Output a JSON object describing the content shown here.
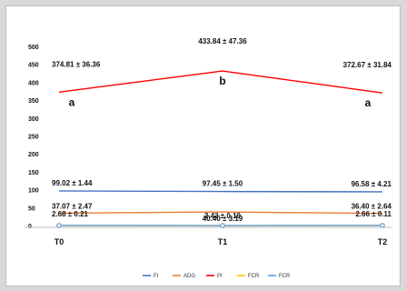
{
  "chart_data": {
    "type": "line",
    "categories": [
      "T0",
      "T1",
      "T2"
    ],
    "y_ticks": [
      0,
      50,
      100,
      150,
      200,
      250,
      300,
      350,
      400,
      450,
      500
    ],
    "ylim": [
      0,
      500
    ],
    "legend_position": "bottom",
    "series": [
      {
        "name": "FI",
        "color": "#4472c4",
        "values": [
          99.02,
          97.45,
          96.58
        ],
        "labels": [
          "99.02 ± 1.44",
          "97.45 ± 1.50",
          "96.58 ± 4.21"
        ]
      },
      {
        "name": "ADG",
        "color": "#ed7d31",
        "values": [
          37.07,
          40.4,
          36.4
        ],
        "labels": [
          "37.07 ± 2.47",
          "40.40 ± 3.19",
          "36.40 ± 2.64"
        ]
      },
      {
        "name": "PI",
        "color": "#ff0000",
        "values": [
          374.81,
          433.84,
          372.67
        ],
        "labels": [
          "374.81 ± 36.36",
          "433.84 ± 47.36",
          "372.67 ± 31.84"
        ],
        "significance": [
          "a",
          "b",
          "a"
        ]
      },
      {
        "name": "FCR",
        "color": "#ffc000",
        "values": [
          2.68,
          2.42,
          2.66
        ],
        "labels": [
          "2.68 ± 0.21",
          "2.42 ± 0.19",
          "2.66 ± 0.11"
        ]
      },
      {
        "name": "FCR",
        "color": "#5b9bd5",
        "values": [
          2.68,
          2.42,
          2.66
        ],
        "marker": "circle"
      }
    ]
  }
}
